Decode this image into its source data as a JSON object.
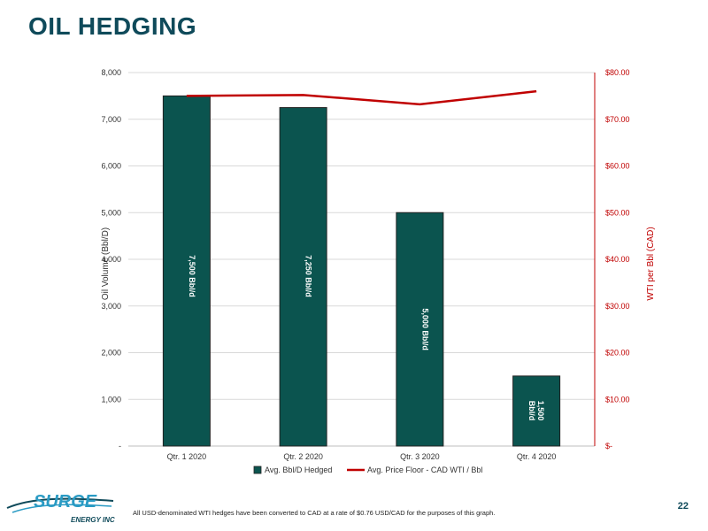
{
  "slide": {
    "title": "OIL HEDGING",
    "footnote": "All USD-denominated WTI hedges have been converted to CAD at a rate of $0.76 USD/CAD for the purposes of this graph.",
    "page_number": "22",
    "logo": {
      "name": "SURGE",
      "tagline": "ENERGY INC"
    }
  },
  "colors": {
    "bar": "#0b544f",
    "line": "#c00000",
    "title": "#0f4a5a"
  },
  "chart_data": {
    "type": "bar",
    "categories": [
      "Qtr. 1 2020",
      "Qtr. 2 2020",
      "Qtr. 3 2020",
      "Qtr. 4 2020"
    ],
    "series": [
      {
        "name": "Avg. Bbl/D Hedged",
        "type": "bar",
        "axis": "left",
        "values": [
          7500,
          7250,
          5000,
          1500
        ],
        "labels": [
          "7,500 Bbl/d",
          "7,250 Bbl/d",
          "5,000 Bbl/d",
          "1,500 Bbl/d"
        ]
      },
      {
        "name": "Avg. Price Floor - CAD WTI / Bbl",
        "type": "line",
        "axis": "right",
        "values": [
          75.0,
          75.2,
          73.2,
          76.0
        ]
      }
    ],
    "ylabel": "Oil Volume (Bbl/D)",
    "ylabel_right": "WTI per Bbl (CAD)",
    "ylim": [
      0,
      8000
    ],
    "ylim_right": [
      0,
      80
    ],
    "yticks": [
      "-",
      "1,000",
      "2,000",
      "3,000",
      "4,000",
      "5,000",
      "6,000",
      "7,000",
      "8,000"
    ],
    "yticks_right": [
      "$-",
      "$10.00",
      "$20.00",
      "$30.00",
      "$40.00",
      "$50.00",
      "$60.00",
      "$70.00",
      "$80.00"
    ],
    "grid": true,
    "legend": "bottom"
  }
}
